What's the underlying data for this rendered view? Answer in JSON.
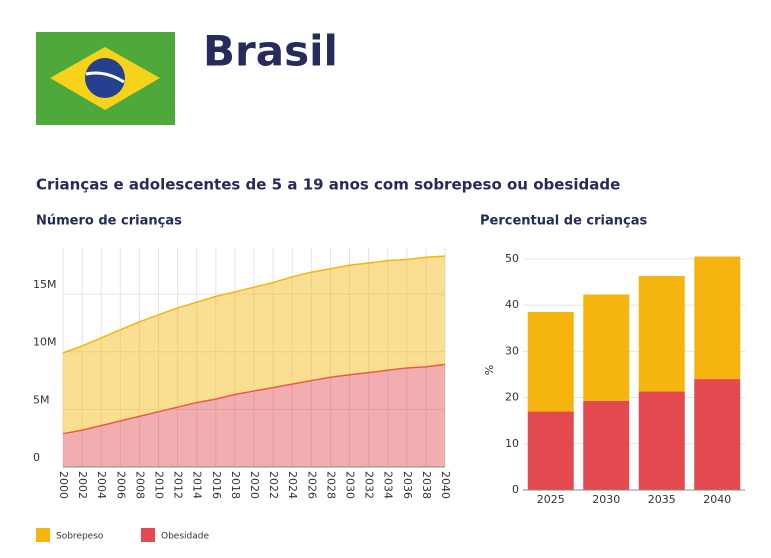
{
  "header": {
    "title": "Brasil",
    "subtitle": "Crianças e adolescentes de 5 a 19 anos com sobrepeso ou obesidade"
  },
  "chart_data": [
    {
      "type": "stacked-area",
      "title": "Número de crianças",
      "x": [
        2000,
        2002,
        2004,
        2006,
        2008,
        2010,
        2012,
        2014,
        2016,
        2018,
        2020,
        2022,
        2024,
        2026,
        2028,
        2030,
        2032,
        2034,
        2036,
        2038,
        2040
      ],
      "series": [
        {
          "name": "Obesidade",
          "color": "#e34a50",
          "values": [
            2900000,
            3200000,
            3600000,
            4000000,
            4400000,
            4800000,
            5200000,
            5600000,
            5900000,
            6300000,
            6600000,
            6900000,
            7200000,
            7500000,
            7800000,
            8000000,
            8200000,
            8400000,
            8600000,
            8700000,
            8900000
          ]
        },
        {
          "name": "Sobrepeso",
          "color": "#f5b50e",
          "values": [
            7000000,
            7300000,
            7600000,
            7900000,
            8200000,
            8400000,
            8600000,
            8700000,
            8900000,
            8900000,
            9000000,
            9100000,
            9300000,
            9400000,
            9400000,
            9500000,
            9500000,
            9500000,
            9400000,
            9500000,
            9400000
          ]
        }
      ],
      "xlim": [
        2000,
        2040
      ],
      "xticks": [
        2000,
        2002,
        2004,
        2006,
        2008,
        2010,
        2012,
        2014,
        2016,
        2018,
        2020,
        2022,
        2024,
        2026,
        2028,
        2030,
        2032,
        2034,
        2036,
        2038,
        2040
      ],
      "ylim": [
        0,
        19000000
      ],
      "yticks": [
        0,
        {
          "value": 5000000,
          "label": "5M"
        },
        {
          "value": 10000000,
          "label": "10M"
        },
        {
          "value": 15000000,
          "label": "15M"
        }
      ],
      "grid": true
    },
    {
      "type": "stacked-bar",
      "title": "Percentual de crianças",
      "ylabel": "%",
      "categories": [
        "2025",
        "2030",
        "2035",
        "2040"
      ],
      "series": [
        {
          "color": "#e34a50",
          "values": [
            17,
            19.3,
            21.3,
            24
          ]
        },
        {
          "color": "#f5b50e",
          "values": [
            21.5,
            23,
            25,
            26.5
          ]
        }
      ],
      "ylim": [
        0,
        53
      ],
      "yticks": [
        0,
        10,
        20,
        30,
        40,
        50
      ],
      "grid": true
    }
  ]
}
